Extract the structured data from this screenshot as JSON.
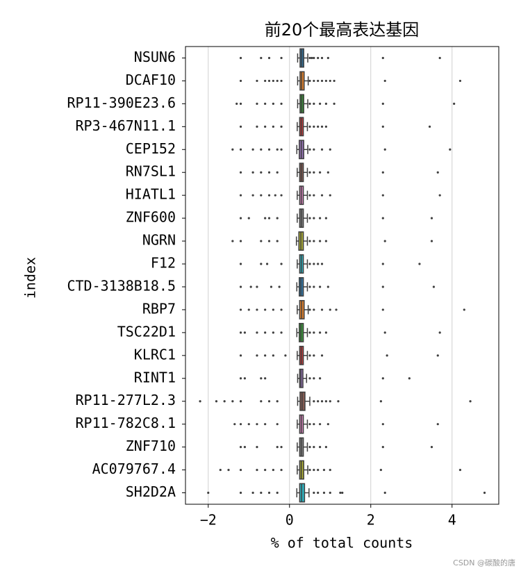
{
  "chart_data": {
    "type": "box",
    "title": "前20个最高表达基因",
    "xlabel": "% of total counts",
    "ylabel": "index",
    "xlim": [
      -2.56,
      5.15
    ],
    "xticks": [
      {
        "value": -2,
        "label": "−2"
      },
      0,
      2,
      4
    ],
    "grid": true,
    "categories": [
      "NSUN6",
      "DCAF10",
      "RP11-390E23.6",
      "RP3-467N11.1",
      "CEP152",
      "RN7SL1",
      "HIATL1",
      "ZNF600",
      "NGRN",
      "F12",
      "CTD-3138B18.5",
      "RBP7",
      "TSC22D1",
      "KLRC1",
      "RINT1",
      "RP11-277L2.3",
      "RP11-782C8.1",
      "ZNF710",
      "AC079767.4",
      "SH2D2A"
    ],
    "boxes": [
      {
        "color": "#3274a1",
        "q1": 0.26,
        "median": 0.3,
        "q3": 0.35,
        "whislo": 0.2,
        "whishi": 0.45,
        "fliers": [
          -1.2,
          -0.7,
          -0.5,
          -0.2,
          0.5,
          0.55,
          0.6,
          0.7,
          0.8,
          0.95,
          2.3,
          3.7
        ]
      },
      {
        "color": "#e1812c",
        "q1": 0.26,
        "median": 0.3,
        "q3": 0.36,
        "whislo": 0.2,
        "whishi": 0.46,
        "fliers": [
          -1.2,
          -0.8,
          -0.6,
          -0.5,
          -0.4,
          -0.3,
          -0.2,
          0.5,
          0.6,
          0.7,
          0.8,
          0.9,
          1.0,
          1.1,
          2.35,
          4.2
        ]
      },
      {
        "color": "#3a923a",
        "q1": 0.26,
        "median": 0.3,
        "q3": 0.35,
        "whislo": 0.2,
        "whishi": 0.45,
        "fliers": [
          -1.3,
          -1.2,
          -0.8,
          -0.6,
          -0.4,
          -0.2,
          0.5,
          0.6,
          0.75,
          0.9,
          1.1,
          2.3,
          4.05
        ]
      },
      {
        "color": "#c03d3e",
        "q1": 0.25,
        "median": 0.29,
        "q3": 0.34,
        "whislo": 0.19,
        "whishi": 0.44,
        "fliers": [
          -1.2,
          -0.8,
          -0.6,
          -0.4,
          -0.2,
          0.5,
          0.6,
          0.7,
          0.8,
          0.9,
          2.3,
          3.45
        ]
      },
      {
        "color": "#9372b2",
        "q1": 0.24,
        "median": 0.29,
        "q3": 0.35,
        "whislo": 0.18,
        "whishi": 0.45,
        "fliers": [
          -1.4,
          -1.2,
          -0.9,
          -0.7,
          -0.5,
          -0.3,
          -0.2,
          0.5,
          0.6,
          0.8,
          1.0,
          2.35,
          3.95
        ]
      },
      {
        "color": "#845b53",
        "q1": 0.25,
        "median": 0.29,
        "q3": 0.34,
        "whislo": 0.19,
        "whishi": 0.44,
        "fliers": [
          -1.2,
          -0.9,
          -0.7,
          -0.5,
          -0.3,
          0.5,
          0.6,
          0.75,
          0.95,
          2.3,
          3.65
        ]
      },
      {
        "color": "#d684bd",
        "q1": 0.25,
        "median": 0.29,
        "q3": 0.34,
        "whislo": 0.19,
        "whishi": 0.44,
        "fliers": [
          -1.2,
          -0.9,
          -0.7,
          -0.5,
          -0.35,
          -0.2,
          0.5,
          0.6,
          0.8,
          1.0,
          2.3,
          3.7
        ]
      },
      {
        "color": "#7f7f7f",
        "q1": 0.25,
        "median": 0.29,
        "q3": 0.34,
        "whislo": 0.19,
        "whishi": 0.44,
        "fliers": [
          -1.2,
          -1.0,
          -0.6,
          -0.5,
          -0.3,
          0.5,
          0.6,
          0.75,
          0.9,
          2.3,
          3.5
        ]
      },
      {
        "color": "#a9aa35",
        "q1": 0.23,
        "median": 0.28,
        "q3": 0.34,
        "whislo": 0.17,
        "whishi": 0.44,
        "fliers": [
          -1.4,
          -1.2,
          -0.7,
          -0.5,
          -0.3,
          0.5,
          0.6,
          0.75,
          0.9,
          2.35,
          3.5
        ]
      },
      {
        "color": "#2eb4c2",
        "q1": 0.25,
        "median": 0.29,
        "q3": 0.34,
        "whislo": 0.19,
        "whishi": 0.44,
        "fliers": [
          -1.2,
          -0.7,
          -0.55,
          -0.2,
          0.5,
          0.6,
          0.7,
          0.8,
          2.3,
          3.2
        ]
      },
      {
        "color": "#3274a1",
        "q1": 0.24,
        "median": 0.28,
        "q3": 0.34,
        "whislo": 0.18,
        "whishi": 0.44,
        "fliers": [
          -1.2,
          -0.95,
          -0.8,
          -0.45,
          -0.25,
          0.5,
          0.6,
          0.75,
          0.95,
          2.3,
          3.55
        ]
      },
      {
        "color": "#e1812c",
        "q1": 0.25,
        "median": 0.3,
        "q3": 0.36,
        "whislo": 0.19,
        "whishi": 0.46,
        "fliers": [
          -1.2,
          -1.0,
          -0.8,
          -0.6,
          -0.4,
          -0.2,
          0.5,
          0.6,
          0.8,
          1.0,
          1.15,
          2.3,
          4.3
        ]
      },
      {
        "color": "#3a923a",
        "q1": 0.24,
        "median": 0.28,
        "q3": 0.34,
        "whislo": 0.18,
        "whishi": 0.44,
        "fliers": [
          -1.2,
          -1.1,
          -0.8,
          -0.6,
          -0.4,
          -0.2,
          0.5,
          0.6,
          0.75,
          0.9,
          2.35,
          3.7
        ]
      },
      {
        "color": "#c03d3e",
        "q1": 0.25,
        "median": 0.29,
        "q3": 0.34,
        "whislo": 0.19,
        "whishi": 0.44,
        "fliers": [
          -1.2,
          -0.8,
          -0.6,
          -0.4,
          -0.1,
          0.5,
          0.6,
          0.8,
          2.4,
          3.65
        ]
      },
      {
        "color": "#9372b2",
        "q1": 0.25,
        "median": 0.28,
        "q3": 0.33,
        "whislo": 0.2,
        "whishi": 0.42,
        "fliers": [
          -1.2,
          -1.1,
          -0.7,
          -0.6,
          0.5,
          0.6,
          0.75,
          2.3,
          2.95
        ]
      },
      {
        "color": "#845b53",
        "q1": 0.26,
        "median": 0.31,
        "q3": 0.38,
        "whislo": 0.2,
        "whishi": 0.5,
        "fliers": [
          -2.2,
          -1.8,
          -1.6,
          -1.4,
          -1.2,
          -0.7,
          -0.5,
          -0.3,
          0.6,
          0.7,
          0.8,
          0.9,
          1.0,
          1.2,
          2.25,
          4.45
        ]
      },
      {
        "color": "#d684bd",
        "q1": 0.25,
        "median": 0.29,
        "q3": 0.34,
        "whislo": 0.19,
        "whishi": 0.44,
        "fliers": [
          -1.35,
          -1.2,
          -1.0,
          -0.8,
          -0.6,
          -0.3,
          0.5,
          0.6,
          0.75,
          0.95,
          2.3,
          3.65
        ]
      },
      {
        "color": "#7f7f7f",
        "q1": 0.25,
        "median": 0.29,
        "q3": 0.34,
        "whislo": 0.19,
        "whishi": 0.44,
        "fliers": [
          -1.2,
          -1.1,
          -0.8,
          -0.3,
          -0.2,
          0.5,
          0.6,
          0.75,
          0.9,
          2.3,
          3.5
        ]
      },
      {
        "color": "#a9aa35",
        "q1": 0.25,
        "median": 0.29,
        "q3": 0.35,
        "whislo": 0.19,
        "whishi": 0.45,
        "fliers": [
          -1.7,
          -1.5,
          -1.2,
          -0.8,
          -0.6,
          -0.4,
          -0.2,
          0.5,
          0.6,
          0.7,
          0.85,
          1.0,
          2.25,
          4.2
        ]
      },
      {
        "color": "#2eb4c2",
        "q1": 0.25,
        "median": 0.3,
        "q3": 0.37,
        "whislo": 0.18,
        "whishi": 0.48,
        "fliers": [
          -2.0,
          -1.2,
          -0.9,
          -0.7,
          -0.5,
          -0.3,
          0.6,
          0.7,
          0.85,
          1.0,
          1.25,
          1.3,
          2.35,
          4.8
        ]
      }
    ]
  },
  "watermark": "CSDN @碳酸的唐"
}
